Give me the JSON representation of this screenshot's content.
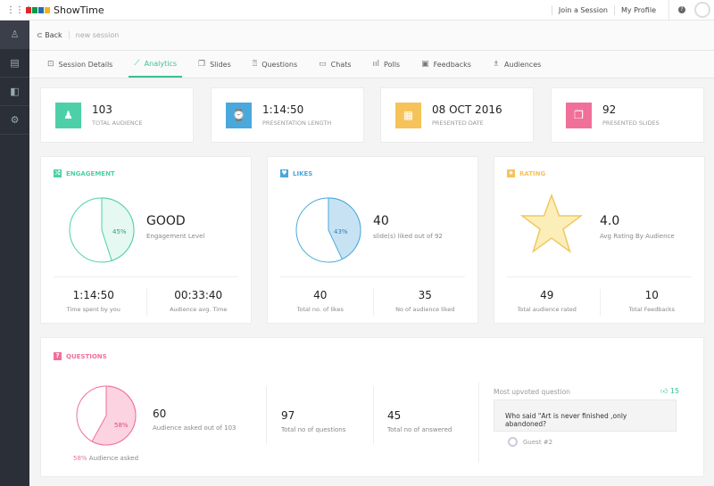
{
  "app": {
    "brand": "ShowTime",
    "logo_letters": "ZOHO",
    "links": [
      "Join a Session",
      "My Profile"
    ]
  },
  "nav": {
    "back": "Back",
    "session": "new session"
  },
  "tabs": [
    {
      "label": "Session Details",
      "icon": "presentation-icon"
    },
    {
      "label": "Analytics",
      "icon": "line-chart-icon",
      "active": true
    },
    {
      "label": "Slides",
      "icon": "slides-icon"
    },
    {
      "label": "Questions",
      "icon": "question-icon"
    },
    {
      "label": "Chats",
      "icon": "chat-icon"
    },
    {
      "label": "Polls",
      "icon": "bar-chart-icon"
    },
    {
      "label": "Feedbacks",
      "icon": "feedback-icon"
    },
    {
      "label": "Audiences",
      "icon": "audience-icon"
    }
  ],
  "stats": [
    {
      "value": "103",
      "label": "TOTAL AUDIENCE",
      "color": "#4dcfa7"
    },
    {
      "value": "1:14:50",
      "label": "PRESENTATION LENGTH",
      "color": "#4aa8db"
    },
    {
      "value": "08 OCT 2016",
      "label": "PRESENTED DATE",
      "color": "#f5c35a"
    },
    {
      "value": "92",
      "label": "PRESENTED SLIDES",
      "color": "#f0709a"
    }
  ],
  "engagement": {
    "title": "ENGAGEMENT",
    "percent_label": "45%",
    "percent": 45,
    "level": "GOOD",
    "level_label": "Engagement Level",
    "b1_value": "1:14:50",
    "b1_label": "Time spent by you",
    "b2_value": "00:33:40",
    "b2_label": "Audience avg. Time",
    "color": "#4dcfa7"
  },
  "likes": {
    "title": "LIKES",
    "percent_label": "43%",
    "percent": 43,
    "value": "40",
    "sub": "slide(s) liked out of 92",
    "b1_value": "40",
    "b1_label": "Total no. of likes",
    "b2_value": "35",
    "b2_label": "No of audience liked",
    "color": "#4aa8db"
  },
  "rating": {
    "title": "RATING",
    "value": "4.0",
    "sub": "Avg Rating By Audience",
    "b1_value": "49",
    "b1_label": "Total audience rated",
    "b2_value": "10",
    "b2_label": "Total Feedbacks",
    "color": "#f5c35a"
  },
  "questions": {
    "title": "QUESTIONS",
    "percent_label": "58%",
    "percent": 58,
    "asked_caption": "58% Audience asked",
    "c1_value": "60",
    "c1_label": "Audience asked out of 103",
    "c2_value": "97",
    "c2_label": "Total no of questions",
    "c3_value": "45",
    "c3_label": "Total no of answered",
    "upvoted_label": "Most upvoted question",
    "upvotes": "15",
    "question": "Who said \"Art is never finished ,only abandoned?",
    "author": "Guest #2",
    "color": "#f0709a"
  }
}
